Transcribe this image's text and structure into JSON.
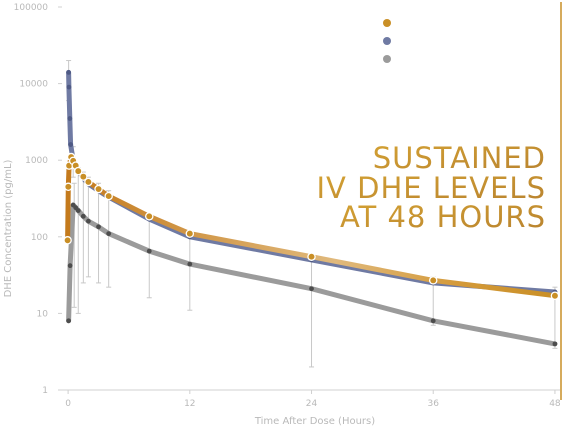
{
  "chart_data": {
    "type": "line",
    "title": "SUSTAINED IV DHE LEVELS AT 48 HOURS",
    "title_lines": [
      "SUSTAINED",
      "IV DHE LEVELS",
      "AT 48 HOURS"
    ],
    "xlabel": "Time After Dose (Hours)",
    "ylabel": "DHE Concentration (pg/mL)",
    "x_ticks": [
      0,
      12,
      24,
      36,
      48
    ],
    "y_ticks": [
      1,
      10,
      100,
      1000,
      10000,
      100000
    ],
    "y_tick_labels": [
      "1",
      "10",
      "100",
      "1000",
      "10000",
      "100000"
    ],
    "y_scale": "log",
    "xlim": [
      -0.8,
      48.5
    ],
    "ylim": [
      1,
      100000
    ],
    "legend_position": "top-right",
    "grid": false,
    "series": [
      {
        "color": "#6f7aa3",
        "x": [
          0.05,
          0.08,
          0.17,
          0.25,
          0.5,
          0.75,
          1,
          1.5,
          2,
          3,
          4,
          8,
          12,
          24,
          36,
          48
        ],
        "y": [
          14000,
          9000,
          3500,
          1600,
          1000,
          850,
          720,
          580,
          490,
          400,
          330,
          170,
          100,
          50,
          25,
          19
        ]
      },
      {
        "color": "#c98f26",
        "x": [
          -0.05,
          0.02,
          0.1,
          0.3,
          0.5,
          0.75,
          1,
          1.5,
          2,
          3,
          4,
          8,
          12,
          24,
          36,
          48
        ],
        "y": [
          90,
          450,
          850,
          1100,
          980,
          850,
          720,
          610,
          520,
          420,
          340,
          185,
          110,
          55,
          27,
          17
        ]
      },
      {
        "color": "#9b9b9b",
        "x": [
          0.05,
          0.2,
          0.5,
          0.75,
          1,
          1.5,
          2,
          3,
          4,
          8,
          12,
          24,
          36,
          48
        ],
        "y": [
          8,
          42,
          260,
          240,
          220,
          185,
          160,
          135,
          110,
          65,
          44,
          21,
          8,
          4
        ]
      }
    ],
    "error_bars": [
      {
        "x": 0.05,
        "low": 6000,
        "high": 20000
      },
      {
        "x": 0.5,
        "low": 600,
        "high": 1500
      },
      {
        "x": 0.6,
        "low": 12,
        "high": 500
      },
      {
        "x": 1,
        "low": 10,
        "high": 800
      },
      {
        "x": 1.5,
        "low": 25,
        "high": 700
      },
      {
        "x": 2,
        "low": 30,
        "high": 600
      },
      {
        "x": 3,
        "low": 25,
        "high": 500
      },
      {
        "x": 4,
        "low": 22,
        "high": 400
      },
      {
        "x": 8,
        "low": 16,
        "high": 200
      },
      {
        "x": 12,
        "low": 11,
        "high": 120
      },
      {
        "x": 24,
        "low": 2,
        "high": 60
      },
      {
        "x": 36,
        "low": 7,
        "high": 30
      },
      {
        "x": 48,
        "low": 3.5,
        "high": 22
      }
    ],
    "colors": {
      "axis": "#d0d0d0",
      "tick_text": "#b9b9b9",
      "headline_start": "#d4a233",
      "headline_end": "#b8822f",
      "end_marker_line": "#c98f26",
      "error_bar": "#c8c8c8"
    }
  }
}
